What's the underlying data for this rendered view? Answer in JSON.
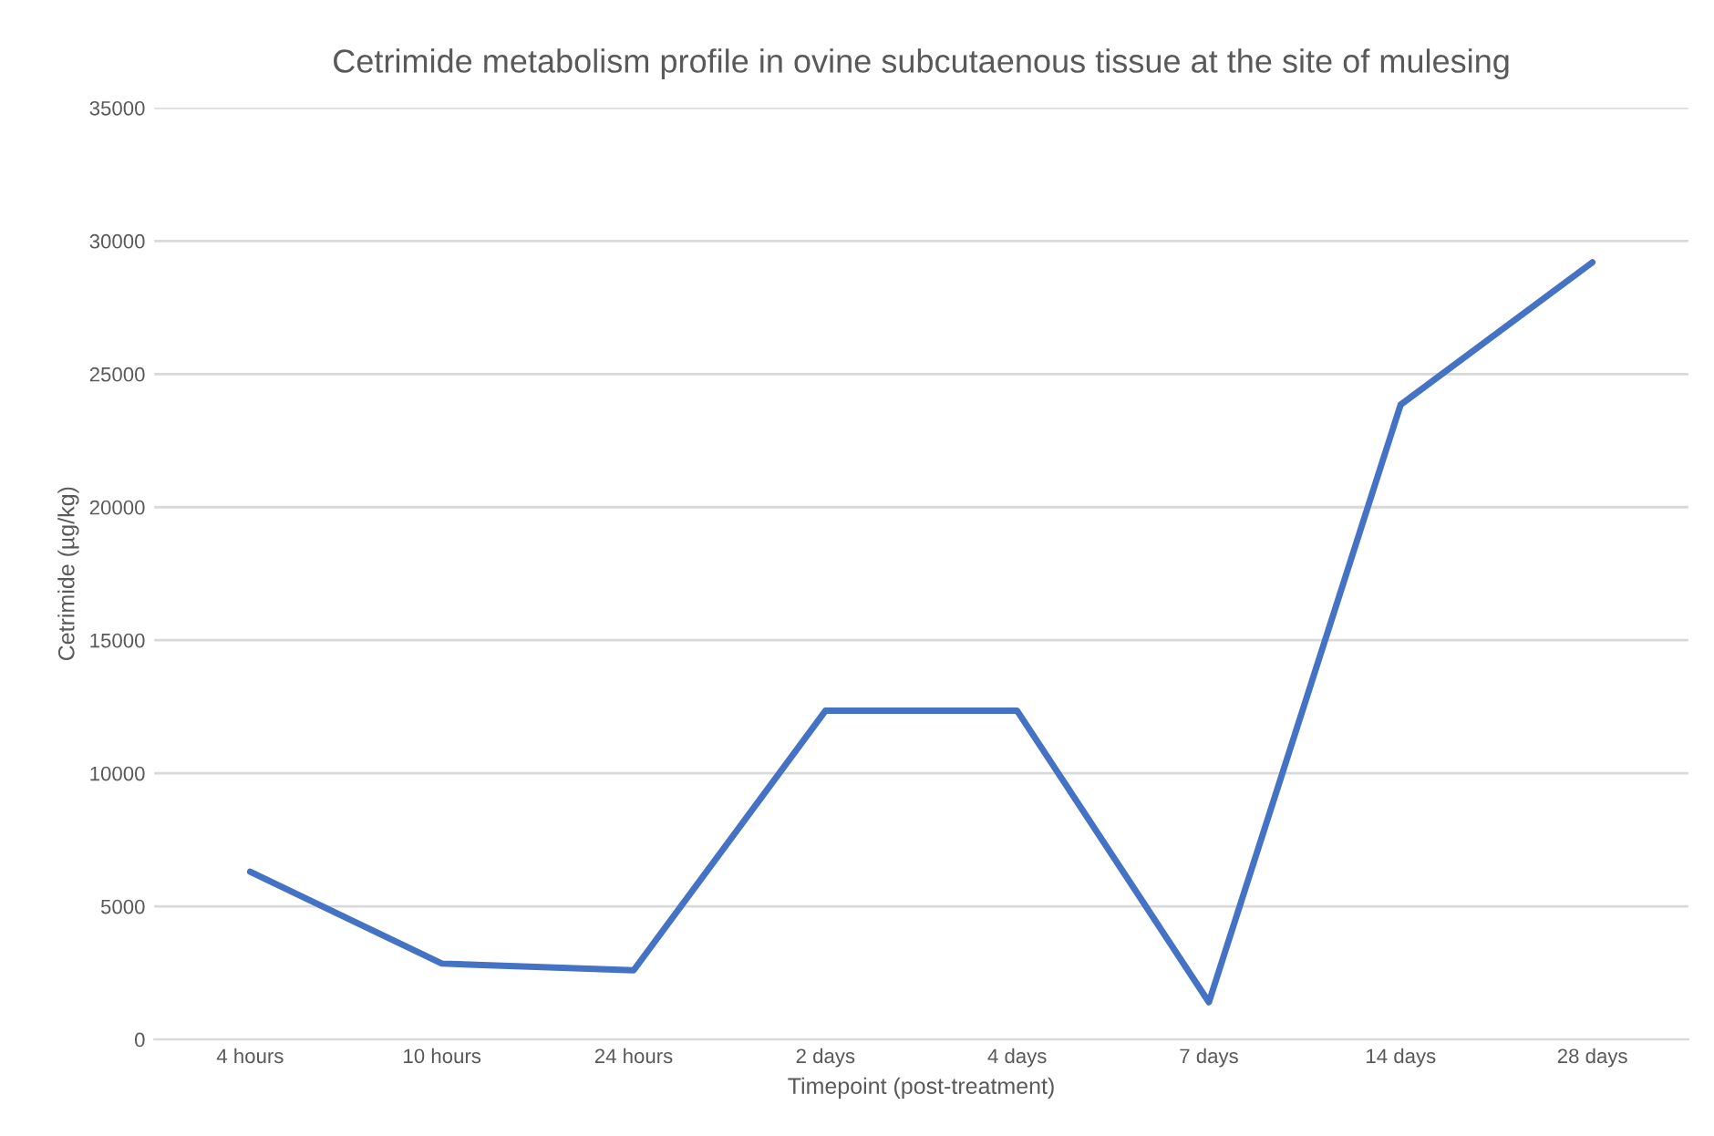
{
  "chart_data": {
    "type": "line",
    "title": "Cetrimide metabolism profile in ovine subcutaenous tissue at the site of mulesing",
    "xlabel": "Timepoint (post-treatment)",
    "ylabel": "Cetrimide (µg/kg)",
    "categories": [
      "4 hours",
      "10 hours",
      "24 hours",
      "2 days",
      "4 days",
      "7 days",
      "14 days",
      "28 days"
    ],
    "series": [
      {
        "color": "#4472c4",
        "values": [
          6300,
          2850,
          2600,
          12350,
          12350,
          1400,
          23850,
          29200
        ]
      }
    ],
    "ylim": [
      0,
      35000
    ],
    "yticks": [
      0,
      5000,
      10000,
      15000,
      20000,
      25000,
      30000,
      35000
    ],
    "grid": "y",
    "legend": false,
    "marker": "none",
    "line_style": "solid"
  }
}
